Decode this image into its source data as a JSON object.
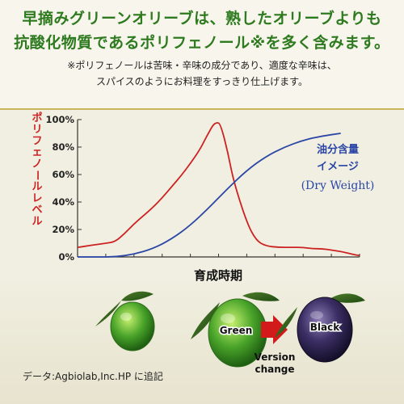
{
  "header": {
    "line1": "早摘みグリーンオリーブは、熟したオリーブよりも",
    "line2": "抗酸化物質であるポリフェノール※を多く含みます。",
    "note1": "※ポリフェノールは苦味・辛味の成分であり、適度な辛味は、",
    "note2": "スパイスのようにお料理をすっきり仕上げます。"
  },
  "chart_data": {
    "type": "line",
    "title": "",
    "xlabel": "育成時期",
    "ylabel": "ポリフェノールレベル",
    "ylim": [
      0,
      100
    ],
    "y_ticks": [
      "0%",
      "20%",
      "40%",
      "60%",
      "80%",
      "100%"
    ],
    "grid": false,
    "series": [
      {
        "name": "",
        "color": "#cc2222",
        "x": [
          0,
          0.5,
          1,
          1.5,
          2,
          2.5,
          3,
          3.5,
          4,
          4.5,
          5,
          5.5,
          6,
          6.5,
          6.8,
          7,
          7.2,
          7.4,
          7.6,
          8,
          8.3,
          9,
          9.5,
          10,
          10.7,
          11.4,
          12,
          12.5,
          13,
          13.5,
          14,
          14.6,
          15
        ],
        "y": [
          7,
          8,
          9,
          10,
          11,
          17,
          24,
          30,
          36,
          43,
          51,
          59,
          68,
          78,
          86,
          91,
          96,
          98,
          97,
          76,
          55,
          25,
          12,
          8,
          7,
          7,
          7,
          6,
          6,
          5,
          4,
          2,
          1
        ]
      },
      {
        "name": "",
        "color": "#2b46a6",
        "x": [
          0,
          1,
          2,
          3,
          4,
          5,
          6,
          7,
          8,
          9,
          10,
          11,
          12,
          13,
          14
        ],
        "y": [
          0,
          0,
          0,
          2,
          6,
          13,
          23,
          36,
          50,
          63,
          73,
          80,
          85,
          88,
          90
        ]
      }
    ],
    "annotation": {
      "line1": "油分含量",
      "line2": "イメージ",
      "line3": "(Dry Weight)"
    }
  },
  "olives": {
    "green_label": "Green",
    "black_label": "Black",
    "change_label1": "Version",
    "change_label2": "change"
  },
  "footer": {
    "source": "データ:Agbiolab,Inc.HP に追記"
  },
  "colors": {
    "headline": "#2e7a1f",
    "red_series": "#cc2222",
    "blue_series": "#2b46a6",
    "arrow": "#d31a1a",
    "green_olive": "#3f9a26",
    "black_olive": "#2e2450"
  }
}
